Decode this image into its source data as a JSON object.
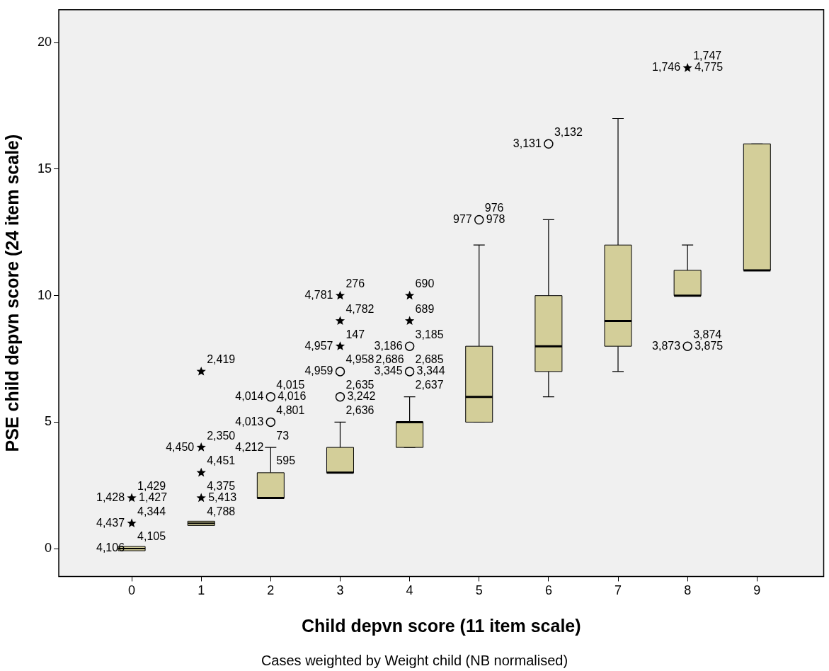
{
  "chart_data": {
    "type": "box",
    "xlabel": "Child depvn score (11 item scale)",
    "ylabel": "PSE child depvn score (24 item scale)",
    "categories": [
      "0",
      "1",
      "2",
      "3",
      "4",
      "5",
      "6",
      "7",
      "8",
      "9"
    ],
    "ylim": [
      -1.1,
      21.3
    ],
    "yticks": [
      0,
      5,
      10,
      15,
      20
    ],
    "grid": false,
    "legend": false,
    "series": [
      {
        "color": "#d3ce99",
        "boxes": [
          {
            "low": 0,
            "q1": 0,
            "median": 0,
            "q3": 0,
            "high": 0
          },
          {
            "low": 1,
            "q1": 1,
            "median": 1,
            "q3": 1,
            "high": 1
          },
          {
            "low": 2,
            "q1": 2,
            "median": 2,
            "q3": 3,
            "high": 4
          },
          {
            "low": 3,
            "q1": 3,
            "median": 3,
            "q3": 4,
            "high": 5
          },
          {
            "low": 4,
            "q1": 4,
            "median": 5,
            "q3": 5,
            "high": 6
          },
          {
            "low": 5,
            "q1": 5,
            "median": 6,
            "q3": 8,
            "high": 12
          },
          {
            "low": 6,
            "q1": 7,
            "median": 8,
            "q3": 10,
            "high": 13
          },
          {
            "low": 7,
            "q1": 8,
            "median": 9,
            "q3": 12,
            "high": 17
          },
          {
            "low": 10,
            "q1": 10,
            "median": 10,
            "q3": 11,
            "high": 12
          },
          {
            "low": 11,
            "q1": 11,
            "median": 11,
            "q3": 16,
            "high": 16
          }
        ]
      },
      {
        "type": "scatter",
        "marker": "circle",
        "color": "#000000",
        "x": [
          "2",
          "2",
          "3",
          "3",
          "4",
          "4",
          "5",
          "6",
          "8"
        ],
        "values": [
          5,
          6,
          6,
          7,
          7,
          8,
          13,
          16,
          8
        ]
      },
      {
        "type": "scatter",
        "marker": "star",
        "color": "#000000",
        "x": [
          "0",
          "0",
          "1",
          "1",
          "1",
          "1",
          "3",
          "3",
          "3",
          "4",
          "4",
          "8"
        ],
        "values": [
          1,
          2,
          2,
          3,
          4,
          7,
          8,
          9,
          10,
          9,
          10,
          19
        ]
      }
    ],
    "annotations": [
      {
        "text": "4,105",
        "x": "0",
        "y": 0
      },
      {
        "text": "4,106",
        "x": "0",
        "y": 0
      },
      {
        "text": "4,344",
        "x": "0",
        "y": 1
      },
      {
        "text": "4,437",
        "x": "0",
        "y": 1
      },
      {
        "text": "1,429",
        "x": "0",
        "y": 2
      },
      {
        "text": "1,428",
        "x": "0",
        "y": 2
      },
      {
        "text": "1,427",
        "x": "0",
        "y": 2
      },
      {
        "text": "4,788",
        "x": "1",
        "y": 1
      },
      {
        "text": "4,375",
        "x": "1",
        "y": 2
      },
      {
        "text": "5,413",
        "x": "1",
        "y": 2
      },
      {
        "text": "4,451",
        "x": "1",
        "y": 3
      },
      {
        "text": "2,350",
        "x": "1",
        "y": 4
      },
      {
        "text": "4,450",
        "x": "1",
        "y": 4
      },
      {
        "text": "2,419",
        "x": "1",
        "y": 7
      },
      {
        "text": "595",
        "x": "2",
        "y": 3
      },
      {
        "text": "73",
        "x": "2",
        "y": 4
      },
      {
        "text": "4,212",
        "x": "2",
        "y": 4
      },
      {
        "text": "4,801",
        "x": "2",
        "y": 5
      },
      {
        "text": "4,013",
        "x": "2",
        "y": 5
      },
      {
        "text": "4,015",
        "x": "2",
        "y": 6
      },
      {
        "text": "4,014",
        "x": "2",
        "y": 6
      },
      {
        "text": "4,016",
        "x": "2",
        "y": 6
      },
      {
        "text": "2,636",
        "x": "3",
        "y": 5
      },
      {
        "text": "2,635",
        "x": "3",
        "y": 6
      },
      {
        "text": "3,242",
        "x": "3",
        "y": 6
      },
      {
        "text": "4,958",
        "x": "3",
        "y": 7
      },
      {
        "text": "4,959",
        "x": "3",
        "y": 7
      },
      {
        "text": "147",
        "x": "3",
        "y": 8
      },
      {
        "text": "4,957",
        "x": "3",
        "y": 8
      },
      {
        "text": "4,782",
        "x": "3",
        "y": 9
      },
      {
        "text": "276",
        "x": "3",
        "y": 10
      },
      {
        "text": "4,781",
        "x": "3",
        "y": 10
      },
      {
        "text": "2,637",
        "x": "4",
        "y": 6
      },
      {
        "text": "2,685",
        "x": "4",
        "y": 7
      },
      {
        "text": "3,345",
        "x": "4",
        "y": 7
      },
      {
        "text": "3,344",
        "x": "4",
        "y": 7
      },
      {
        "text": "2,686",
        "x": "4",
        "y": 7
      },
      {
        "text": "3,185",
        "x": "4",
        "y": 8
      },
      {
        "text": "3,186",
        "x": "4",
        "y": 8
      },
      {
        "text": "689",
        "x": "4",
        "y": 9
      },
      {
        "text": "690",
        "x": "4",
        "y": 10
      },
      {
        "text": "976",
        "x": "5",
        "y": 13
      },
      {
        "text": "977",
        "x": "5",
        "y": 13
      },
      {
        "text": "978",
        "x": "5",
        "y": 13
      },
      {
        "text": "3,132",
        "x": "6",
        "y": 16
      },
      {
        "text": "3,131",
        "x": "6",
        "y": 16
      },
      {
        "text": "3,874",
        "x": "8",
        "y": 8
      },
      {
        "text": "3,873",
        "x": "8",
        "y": 8
      },
      {
        "text": "3,875",
        "x": "8",
        "y": 8
      },
      {
        "text": "1,747",
        "x": "8",
        "y": 19
      },
      {
        "text": "1,746",
        "x": "8",
        "y": 19
      },
      {
        "text": "4,775",
        "x": "8",
        "y": 19
      },
      "Cases weighted by Weight child (NB normalised)"
    ]
  }
}
